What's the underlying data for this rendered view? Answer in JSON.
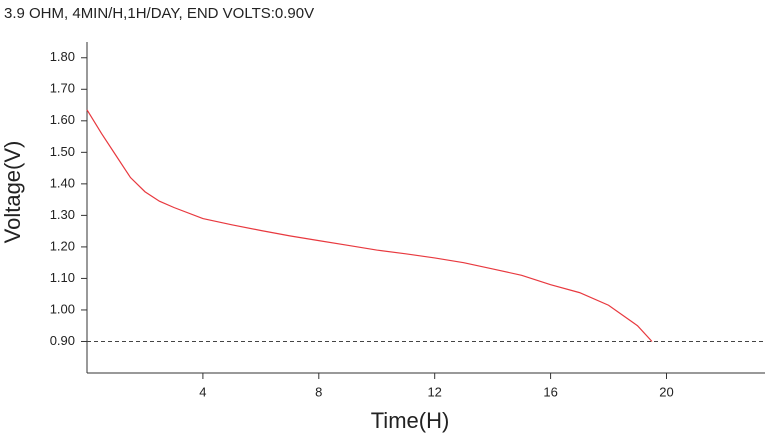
{
  "chart_data": {
    "type": "line",
    "title": "3.9 OHM, 4MIN/H,1H/DAY, END VOLTS:0.90V",
    "x_label": "Time(H)",
    "y_label": "Voltage(V)",
    "x": [
      0,
      0.5,
      1,
      1.5,
      2,
      2.5,
      3,
      4,
      5,
      6,
      7,
      8,
      9,
      10,
      11,
      12,
      13,
      14,
      15,
      16,
      17,
      18,
      19,
      19.5
    ],
    "series": [
      {
        "color": "#e8393f",
        "values": [
          1.635,
          1.56,
          1.49,
          1.42,
          1.375,
          1.345,
          1.325,
          1.29,
          1.27,
          1.252,
          1.235,
          1.22,
          1.205,
          1.19,
          1.178,
          1.165,
          1.15,
          1.13,
          1.11,
          1.08,
          1.055,
          1.015,
          0.95,
          0.9
        ]
      }
    ],
    "xlim": [
      0,
      23.4
    ],
    "xticks": [
      4,
      8,
      12,
      16,
      20
    ],
    "ylim": [
      0.8,
      1.85
    ],
    "yticks": [
      {
        "value": 0.9,
        "label": "0.90"
      },
      {
        "value": 1.0,
        "label": "1.00"
      },
      {
        "value": 1.1,
        "label": "1.10"
      },
      {
        "value": 1.2,
        "label": "1.20"
      },
      {
        "value": 1.3,
        "label": "1.30"
      },
      {
        "value": 1.4,
        "label": "1.40"
      },
      {
        "value": 1.5,
        "label": "1.50"
      },
      {
        "value": 1.6,
        "label": "1.60"
      },
      {
        "value": 1.7,
        "label": "1.70"
      },
      {
        "value": 1.8,
        "label": "1.80"
      }
    ],
    "reference_line": 0.9,
    "grid": false
  }
}
